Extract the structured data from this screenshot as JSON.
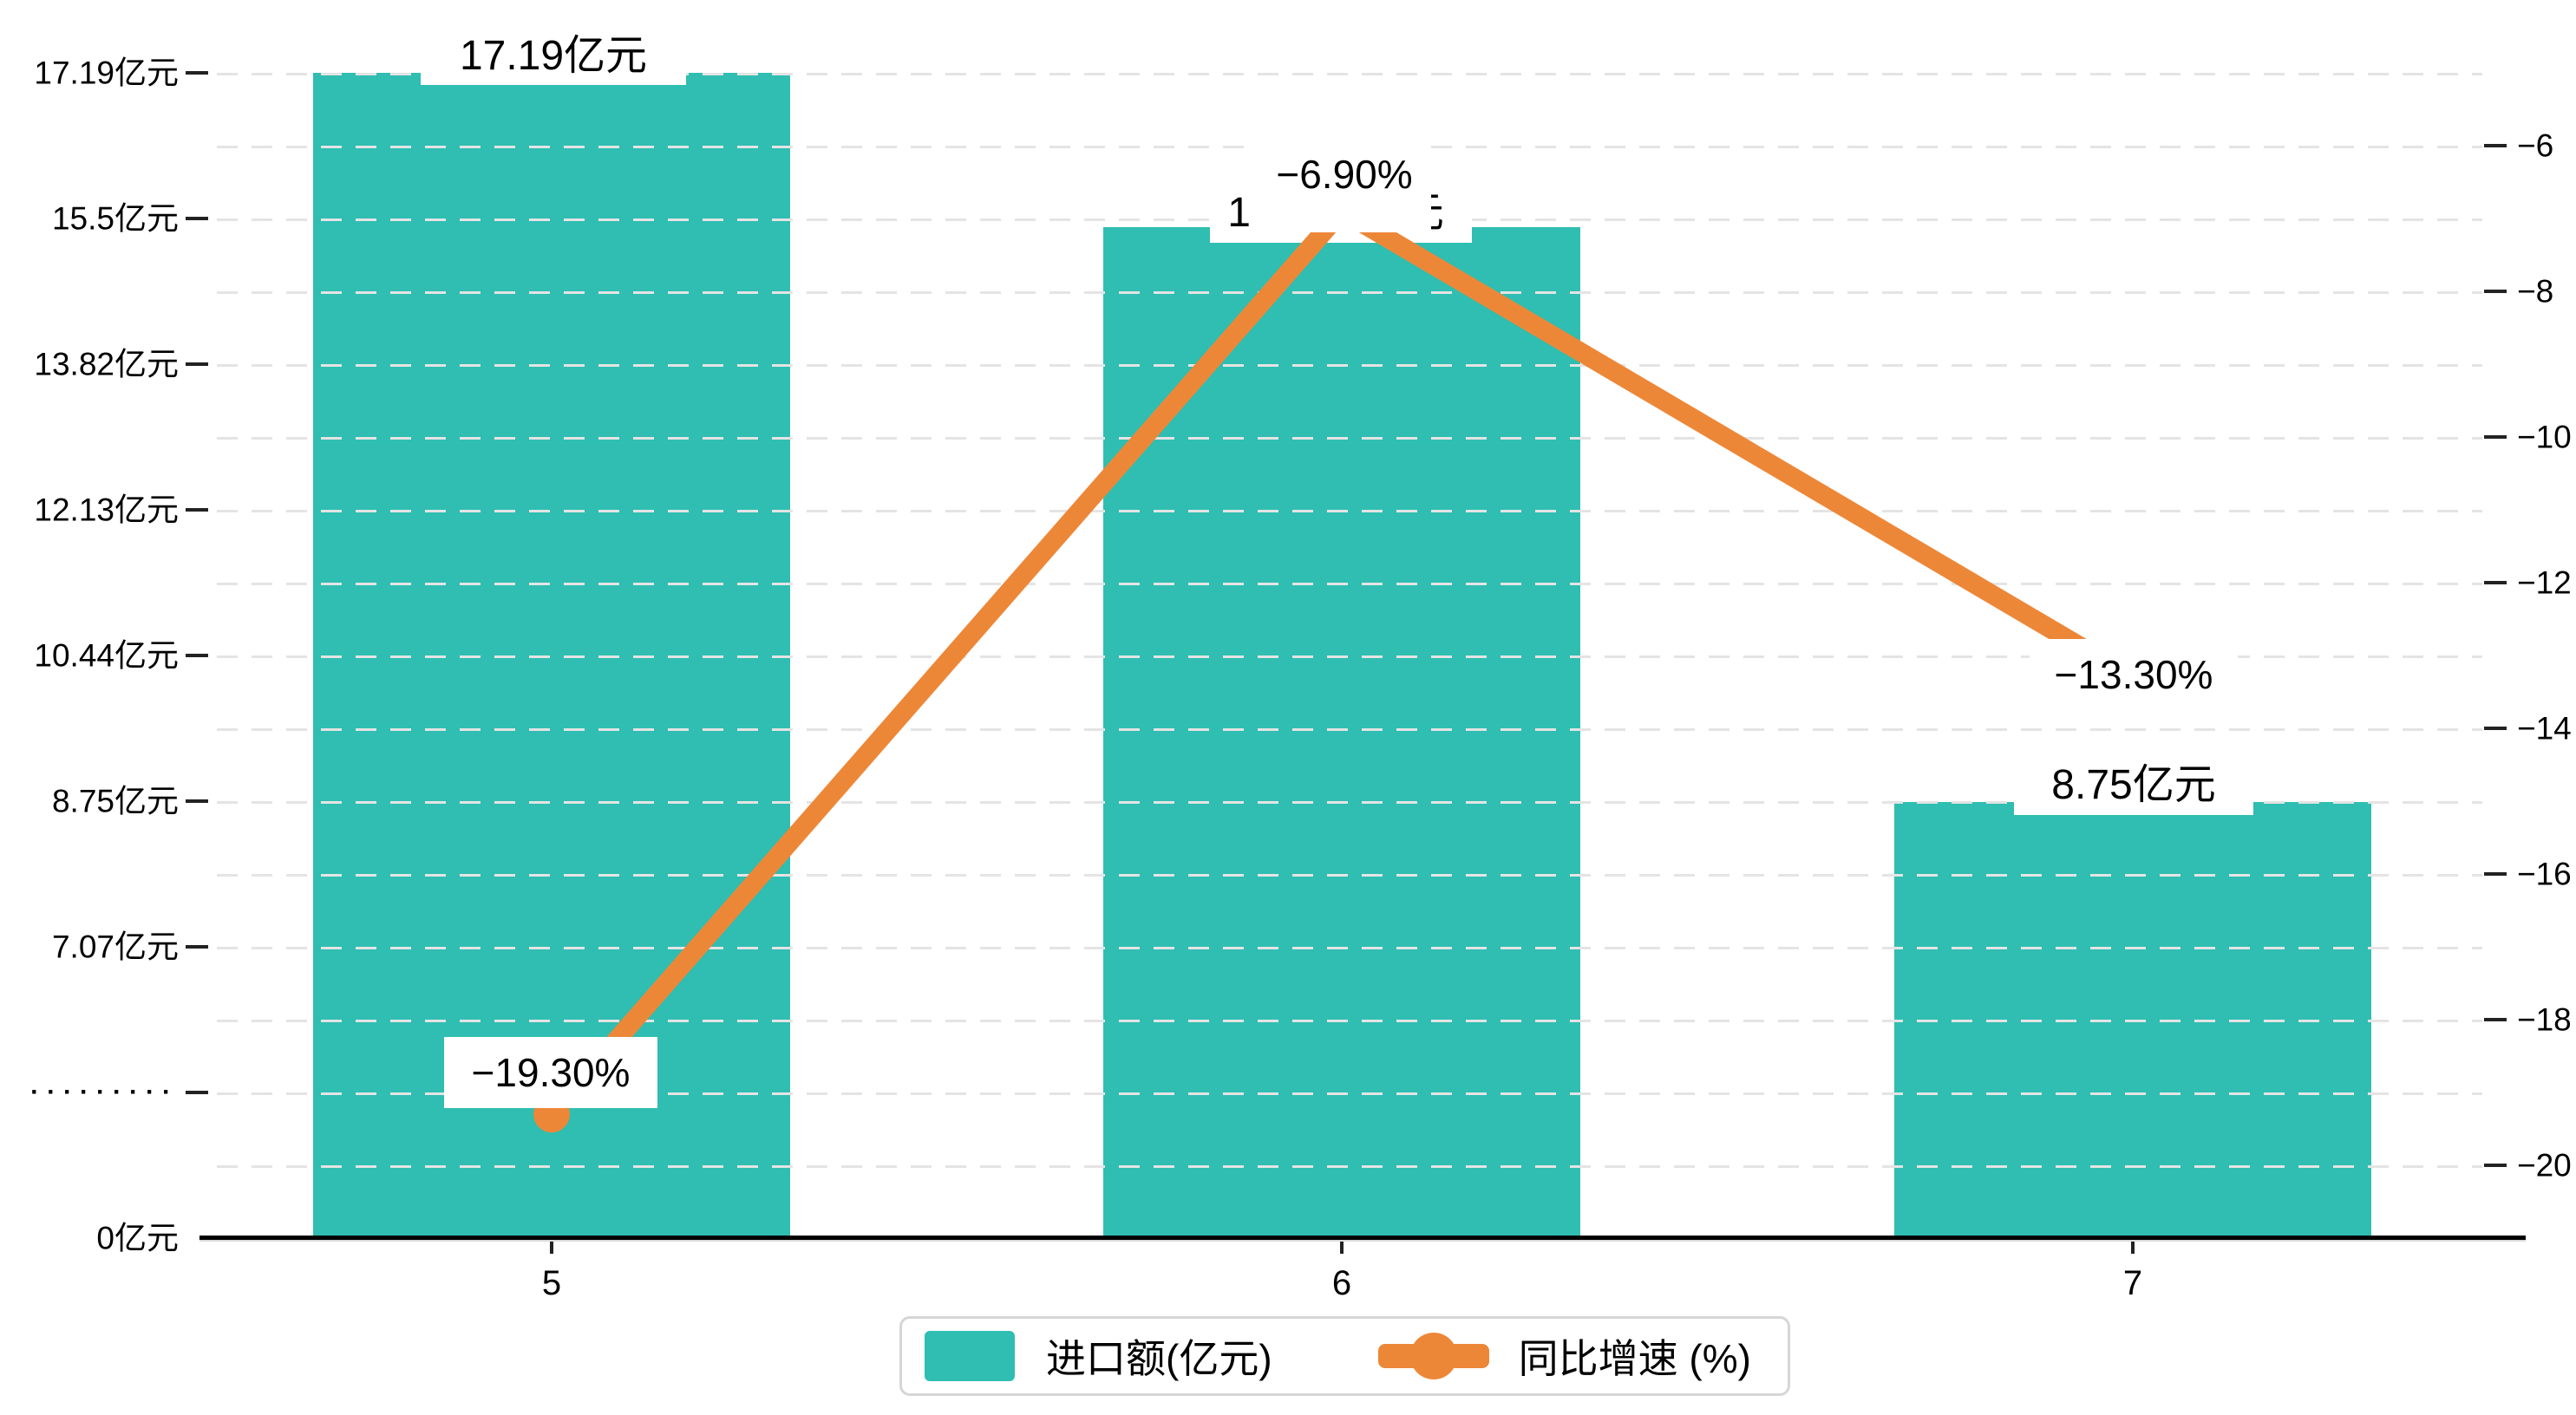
{
  "chart_data": {
    "type": "combo-bar-line",
    "categories": [
      "5",
      "6",
      "7"
    ],
    "series": [
      {
        "name": "进口额(亿元)",
        "type": "bar",
        "axis": "left",
        "unit": "亿元",
        "values": [
          17.19,
          15.4,
          8.75
        ],
        "data_labels": [
          "17.19亿元",
          "15.4亿元",
          "8.75亿元"
        ],
        "color": "#2fbeb1"
      },
      {
        "name": "同比增速 (%)",
        "type": "line",
        "axis": "right",
        "unit": "%",
        "values": [
          -19.3,
          -6.9,
          -13.3
        ],
        "data_labels": [
          "−19.30%",
          "−6.90%",
          "−13.30%"
        ],
        "color": "#ed8738"
      }
    ],
    "left_axis": {
      "tick_labels": [
        "17.19亿元",
        "15.5亿元",
        "13.82亿元",
        "12.13亿元",
        "10.44亿元",
        "8.75亿元",
        "7.07亿元",
        "·········",
        "0亿元"
      ],
      "break_label": "·········",
      "top_value": 17.19,
      "bottom_value": 0
    },
    "right_axis": {
      "tick_labels": [
        "−6",
        "−8",
        "−10",
        "−12",
        "−14",
        "−16",
        "−18",
        "−20"
      ],
      "max": -6,
      "min": -20
    },
    "x_axis": {
      "tick_labels": [
        "5",
        "6",
        "7"
      ]
    },
    "legend": {
      "items": [
        {
          "label": "进口额(亿元)",
          "mark": "bar-swatch"
        },
        {
          "label": "同比增速 (%)",
          "mark": "line-dot"
        }
      ]
    },
    "grid": {
      "lines": "horizontal",
      "style": "dashed",
      "color": "#e4e4e4"
    }
  },
  "colors": {
    "bar": "#2fbeb1",
    "line": "#ed8738",
    "grid": "#e4e4e4",
    "axis": "#000000",
    "text": "#000000",
    "label_background": "#ffffff",
    "legend_border": "#d6d6d6",
    "background": "#ffffff"
  }
}
